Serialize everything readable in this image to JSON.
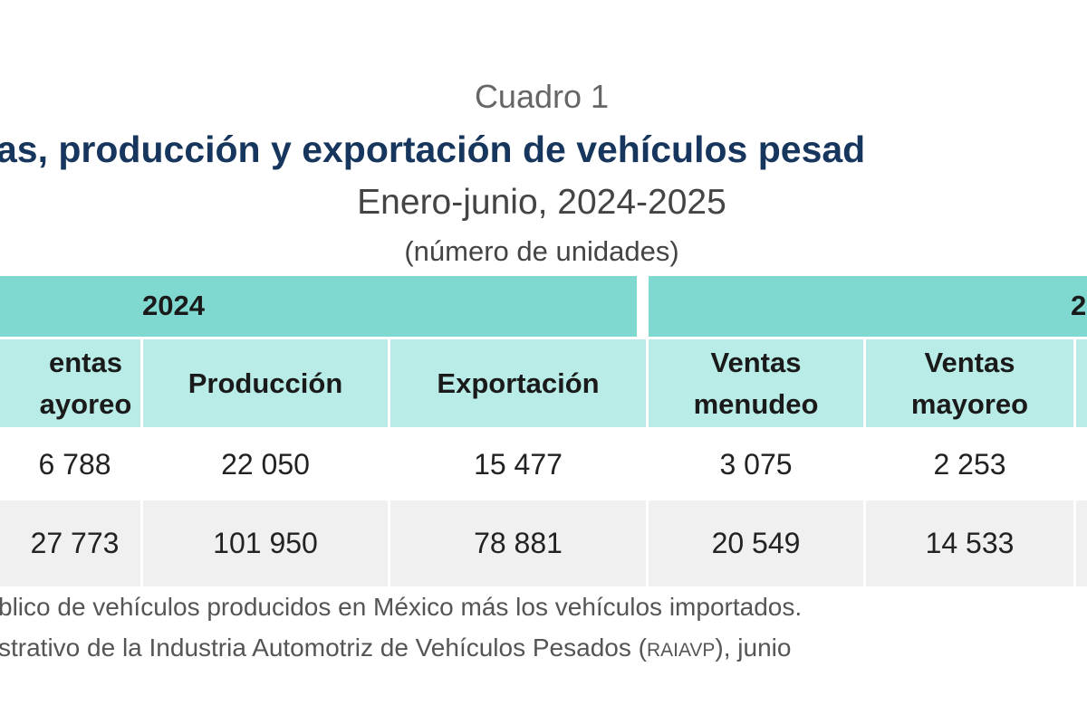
{
  "header": {
    "label": "Cuadro 1",
    "title": "as, producción y exportación de vehículos pesad",
    "subtitle": "Enero-junio, 2024-2025",
    "units": "(número de unidades)"
  },
  "table": {
    "groups": [
      "2024",
      "2"
    ],
    "columns": [
      [
        "entas",
        "ayoreo"
      ],
      [
        "Producción"
      ],
      [
        "Exportación"
      ],
      [
        "Ventas",
        "menudeo"
      ],
      [
        "Ventas",
        "mayoreo"
      ]
    ],
    "rows": [
      [
        "6 788",
        "22 050",
        "15 477",
        "3 075",
        "2 253"
      ],
      [
        "27 773",
        "101 950",
        "78 881",
        "20 549",
        "14 533"
      ]
    ]
  },
  "notes": [
    {
      "text": "blico de vehículos producidos en México más los vehículos importados."
    },
    {
      "before": "strativo de la Industria Automotriz de Vehículos Pesados (",
      "abbr": "RAIAVP",
      "after": "), junio"
    }
  ]
}
